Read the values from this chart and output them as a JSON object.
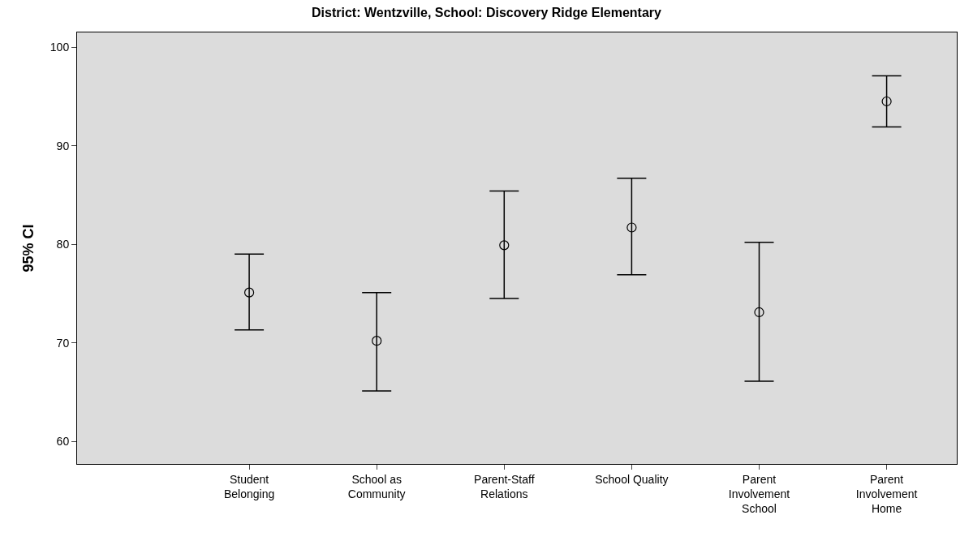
{
  "chart_data": {
    "type": "scatter",
    "title": "District: Wentzville, School: Discovery Ridge Elementary",
    "ylabel": "95% CI",
    "categories": [
      "Student Belonging",
      "School as Community",
      "Parent-Staff Relations",
      "School Quality",
      "Parent Involvement School",
      "Parent Involvement Home"
    ],
    "values": [
      75.1,
      70.2,
      79.9,
      81.7,
      73.1,
      94.5
    ],
    "errors": [
      [
        71.3,
        79.0
      ],
      [
        65.1,
        75.1
      ],
      [
        74.5,
        85.4
      ],
      [
        76.9,
        86.7
      ],
      [
        66.1,
        80.2
      ],
      [
        91.9,
        97.1
      ]
    ],
    "color": "#000000",
    "marker": "circle",
    "ylim": [
      57.7,
      101.5
    ],
    "yticks": [
      60,
      70,
      80,
      90,
      100
    ],
    "grid": false,
    "legend": false
  }
}
